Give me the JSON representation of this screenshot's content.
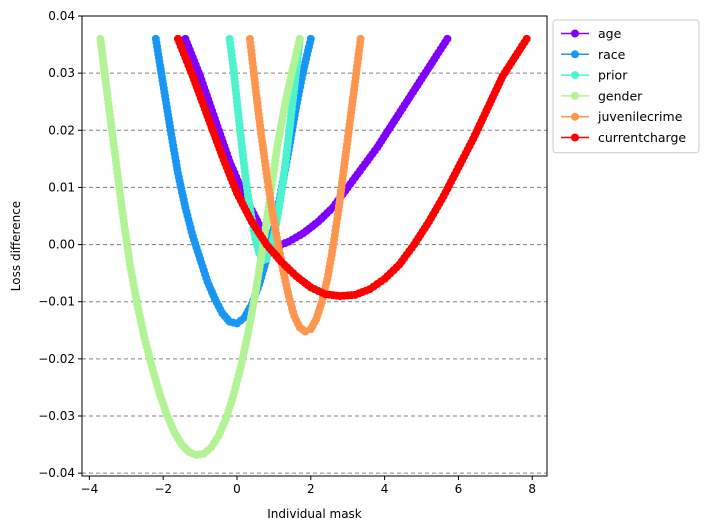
{
  "chart_data": {
    "type": "line",
    "title": "",
    "xlabel": "Individual mask",
    "ylabel": "Loss difference",
    "xlim": [
      -4.2,
      8.4
    ],
    "ylim": [
      -0.0405,
      0.04
    ],
    "xticks": [
      -4,
      -2,
      0,
      2,
      4,
      6,
      8
    ],
    "yticks": [
      -0.04,
      -0.03,
      -0.02,
      -0.01,
      0.0,
      0.01,
      0.02,
      0.03,
      0.04
    ],
    "xtick_labels": [
      "−4",
      "−2",
      "0",
      "2",
      "4",
      "6",
      "8"
    ],
    "ytick_labels": [
      "−0.04",
      "−0.03",
      "−0.02",
      "−0.01",
      "0.00",
      "0.01",
      "0.02",
      "0.03",
      "0.04"
    ],
    "grid": "horizontal dashed",
    "legend_position": "outside upper right",
    "series": [
      {
        "name": "age",
        "color": "#8000ff",
        "x": [
          -1.4,
          -1.0,
          -0.6,
          -0.2,
          0.2,
          0.6,
          1.0,
          1.2,
          1.4,
          1.8,
          2.2,
          2.6,
          3.0,
          3.4,
          3.8,
          4.2,
          4.6,
          5.0,
          5.4,
          5.7
        ],
        "y": [
          0.036,
          0.0295,
          0.022,
          0.0145,
          0.0085,
          0.0035,
          0.0005,
          0.0,
          0.0005,
          0.002,
          0.004,
          0.0065,
          0.01,
          0.0135,
          0.017,
          0.021,
          0.025,
          0.029,
          0.033,
          0.036
        ]
      },
      {
        "name": "race",
        "color": "#1996f3",
        "x": [
          -2.2,
          -2.0,
          -1.8,
          -1.6,
          -1.4,
          -1.2,
          -1.0,
          -0.8,
          -0.6,
          -0.4,
          -0.2,
          0.0,
          0.2,
          0.4,
          0.6,
          0.8,
          1.0,
          1.2,
          1.4,
          1.6,
          1.8,
          2.0
        ],
        "y": [
          0.036,
          0.028,
          0.02,
          0.0125,
          0.0065,
          0.0015,
          -0.0025,
          -0.0065,
          -0.0095,
          -0.012,
          -0.0135,
          -0.0138,
          -0.0128,
          -0.0105,
          -0.007,
          -0.0025,
          0.003,
          0.0095,
          0.0165,
          0.024,
          0.0305,
          0.036
        ]
      },
      {
        "name": "prior",
        "color": "#4df3ce",
        "x": [
          -0.2,
          -0.1,
          0.0,
          0.1,
          0.2,
          0.3,
          0.4,
          0.5,
          0.6,
          0.7,
          0.8,
          0.9,
          1.0,
          1.1,
          1.2,
          1.3,
          1.4,
          1.5,
          1.6,
          1.7
        ],
        "y": [
          0.036,
          0.031,
          0.025,
          0.019,
          0.0135,
          0.0085,
          0.0045,
          0.001,
          -0.0015,
          -0.0028,
          -0.0025,
          -0.001,
          0.0015,
          0.005,
          0.009,
          0.0135,
          0.019,
          0.0245,
          0.03,
          0.036
        ]
      },
      {
        "name": "gender",
        "color": "#b2f396",
        "x": [
          -3.7,
          -3.5,
          -3.3,
          -3.1,
          -2.9,
          -2.7,
          -2.5,
          -2.3,
          -2.1,
          -1.9,
          -1.7,
          -1.5,
          -1.3,
          -1.1,
          -0.9,
          -0.7,
          -0.5,
          -0.3,
          -0.1,
          0.1,
          0.3,
          0.5,
          0.7,
          0.9,
          1.1,
          1.3,
          1.5,
          1.7
        ],
        "y": [
          0.036,
          0.0255,
          0.0155,
          0.0055,
          -0.0035,
          -0.0105,
          -0.0165,
          -0.0215,
          -0.026,
          -0.0298,
          -0.0328,
          -0.035,
          -0.0363,
          -0.0368,
          -0.0366,
          -0.0355,
          -0.0335,
          -0.0305,
          -0.0265,
          -0.0215,
          -0.0155,
          -0.0085,
          -0.0005,
          0.0085,
          0.0175,
          0.0245,
          0.0305,
          0.036
        ]
      },
      {
        "name": "juvenilecrime",
        "color": "#ff964f",
        "x": [
          0.35,
          0.5,
          0.65,
          0.8,
          0.95,
          1.1,
          1.25,
          1.4,
          1.55,
          1.7,
          1.85,
          2.0,
          2.15,
          2.3,
          2.45,
          2.6,
          2.75,
          2.9,
          3.05,
          3.2,
          3.35
        ],
        "y": [
          0.036,
          0.0275,
          0.0195,
          0.0125,
          0.006,
          0.0005,
          -0.0045,
          -0.009,
          -0.0125,
          -0.0145,
          -0.0152,
          -0.0148,
          -0.013,
          -0.01,
          -0.006,
          -0.0005,
          0.006,
          0.0135,
          0.021,
          0.0285,
          0.036
        ]
      },
      {
        "name": "currentcharge",
        "color": "#ff0000",
        "x": [
          -1.6,
          -1.2,
          -0.8,
          -0.4,
          0.0,
          0.4,
          0.8,
          1.2,
          1.6,
          2.0,
          2.4,
          2.8,
          3.2,
          3.6,
          4.0,
          4.4,
          4.8,
          5.2,
          5.6,
          6.0,
          6.4,
          6.8,
          7.2,
          7.6,
          7.85
        ],
        "y": [
          0.036,
          0.0295,
          0.0225,
          0.0155,
          0.009,
          0.004,
          0.0,
          -0.003,
          -0.0055,
          -0.0075,
          -0.0087,
          -0.009,
          -0.0088,
          -0.0078,
          -0.006,
          -0.0035,
          0.0,
          0.004,
          0.0085,
          0.0135,
          0.0185,
          0.024,
          0.0295,
          0.0335,
          0.036
        ]
      }
    ]
  }
}
